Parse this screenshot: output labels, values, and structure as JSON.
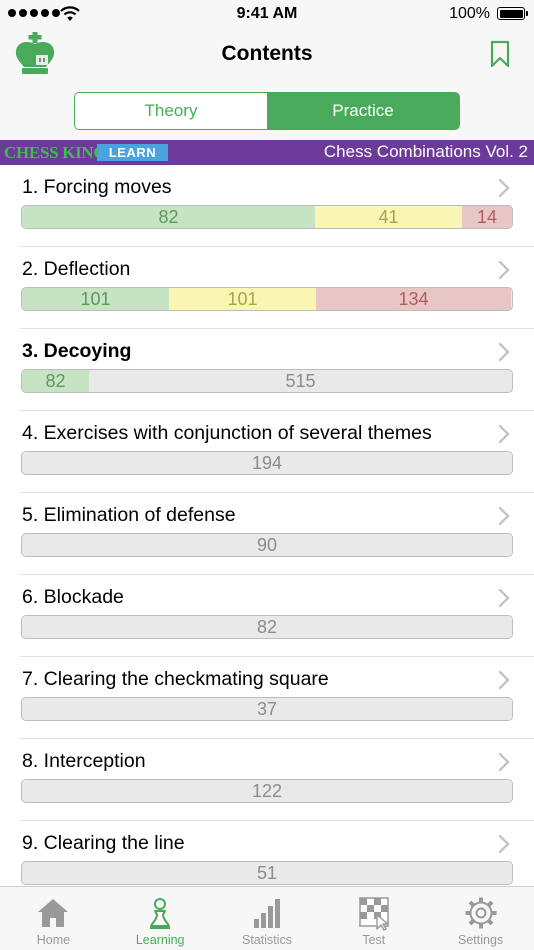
{
  "status_bar": {
    "time": "9:41 AM",
    "battery": "100%"
  },
  "nav": {
    "title": "Contents"
  },
  "segment": {
    "theory": "Theory",
    "practice": "Practice",
    "selected": "Practice"
  },
  "banner": {
    "brand": "CHESS KING",
    "badge": "LEARN",
    "title": "Chess Combinations Vol. 2"
  },
  "colors": {
    "accent": "#4aaa5c",
    "banner": "#6c3a98",
    "green": "#c6e3c4",
    "yellow": "#faf5b2",
    "red": "#e8c6c6",
    "grey": "#e9e9e9"
  },
  "chapters": [
    {
      "title": "1. Forcing moves",
      "bold": false,
      "segments": [
        {
          "type": "green",
          "value": "82"
        },
        {
          "type": "yellow",
          "value": "41"
        },
        {
          "type": "red",
          "value": "14"
        }
      ]
    },
    {
      "title": "2. Deflection",
      "bold": false,
      "segments": [
        {
          "type": "green",
          "value": "101"
        },
        {
          "type": "yellow",
          "value": "101"
        },
        {
          "type": "red",
          "value": "134"
        }
      ]
    },
    {
      "title": "3. Decoying",
      "bold": true,
      "segments": [
        {
          "type": "green",
          "value": "82"
        },
        {
          "type": "grey",
          "value": "515"
        }
      ]
    },
    {
      "title": "4. Exercises with conjunction of several themes",
      "bold": false,
      "segments": [
        {
          "type": "grey",
          "value": "194"
        }
      ]
    },
    {
      "title": "5. Elimination of defense",
      "bold": false,
      "segments": [
        {
          "type": "grey",
          "value": "90"
        }
      ]
    },
    {
      "title": "6. Blockade",
      "bold": false,
      "segments": [
        {
          "type": "grey",
          "value": "82"
        }
      ]
    },
    {
      "title": "7. Clearing the checkmating square",
      "bold": false,
      "segments": [
        {
          "type": "grey",
          "value": "37"
        }
      ]
    },
    {
      "title": "8. Interception",
      "bold": false,
      "segments": [
        {
          "type": "grey",
          "value": "122"
        }
      ]
    },
    {
      "title": "9. Clearing the line",
      "bold": false,
      "segments": [
        {
          "type": "grey",
          "value": "51"
        }
      ]
    }
  ],
  "tabs": [
    {
      "label": "Home",
      "icon": "home-icon",
      "active": false
    },
    {
      "label": "Learning",
      "icon": "pawn-icon",
      "active": true
    },
    {
      "label": "Statistics",
      "icon": "statistics-icon",
      "active": false
    },
    {
      "label": "Test",
      "icon": "test-icon",
      "active": false
    },
    {
      "label": "Settings",
      "icon": "gear-icon",
      "active": false
    }
  ]
}
